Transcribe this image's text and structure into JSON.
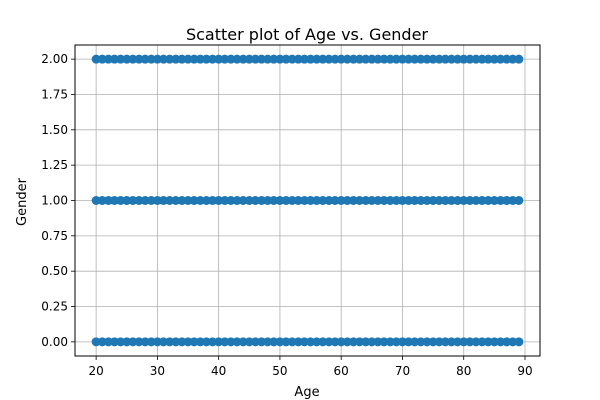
{
  "chart_data": {
    "type": "scatter",
    "title": "Scatter plot of Age vs. Gender",
    "xlabel": "Age",
    "ylabel": "Gender",
    "xlim": [
      16.55,
      92.45
    ],
    "ylim": [
      -0.1,
      2.1
    ],
    "x_ticks": [
      20,
      30,
      40,
      50,
      60,
      70,
      80,
      90
    ],
    "x_tick_labels": [
      "20",
      "30",
      "40",
      "50",
      "60",
      "70",
      "80",
      "90"
    ],
    "y_ticks": [
      0,
      0.25,
      0.5,
      0.75,
      1.0,
      1.25,
      1.5,
      1.75,
      2.0
    ],
    "y_tick_labels": [
      "0.00",
      "0.25",
      "0.50",
      "0.75",
      "1.00",
      "1.25",
      "1.50",
      "1.75",
      "2.00"
    ],
    "grid": true,
    "marker_color": "#1f77b4",
    "series": [
      {
        "x_range": [
          20,
          89
        ],
        "x_step": 1,
        "y": 2
      },
      {
        "x_range": [
          20,
          89
        ],
        "x_step": 1,
        "y": 1
      },
      {
        "x_range": [
          20,
          89
        ],
        "x_step": 1,
        "y": 0
      }
    ]
  }
}
